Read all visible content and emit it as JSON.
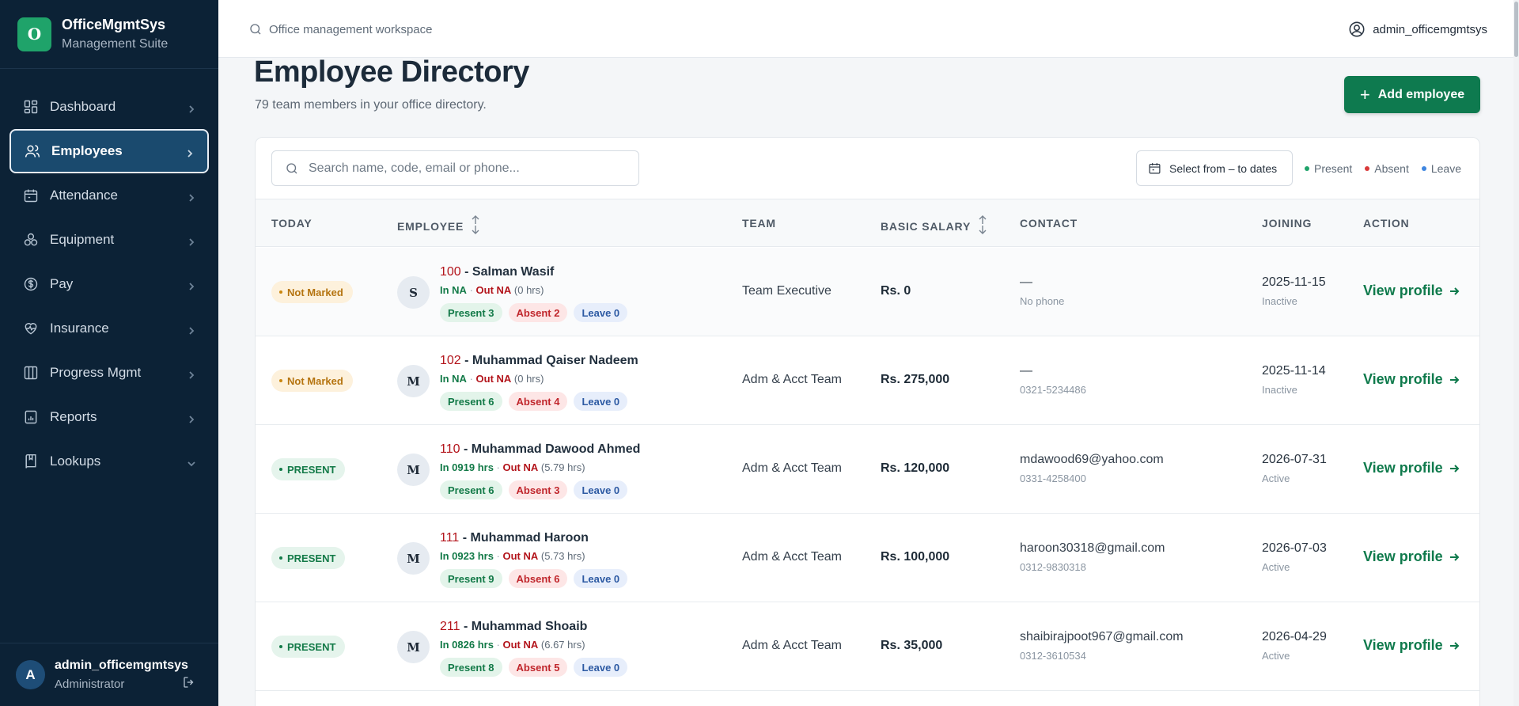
{
  "brand": {
    "logo_letter": "O",
    "name": "OfficeMgmtSys",
    "subtitle": "Management Suite"
  },
  "sidebar": {
    "items": [
      {
        "label": "Dashboard",
        "icon": "dashboard-icon",
        "active": false,
        "chevron": "right"
      },
      {
        "label": "Employees",
        "icon": "users-icon",
        "active": true,
        "chevron": "right"
      },
      {
        "label": "Attendance",
        "icon": "calendar-icon",
        "active": false,
        "chevron": "right"
      },
      {
        "label": "Equipment",
        "icon": "equipment-icon",
        "active": false,
        "chevron": "right"
      },
      {
        "label": "Pay",
        "icon": "dollar-icon",
        "active": false,
        "chevron": "right"
      },
      {
        "label": "Insurance",
        "icon": "heart-pulse-icon",
        "active": false,
        "chevron": "right"
      },
      {
        "label": "Progress Mgmt",
        "icon": "columns-icon",
        "active": false,
        "chevron": "right"
      },
      {
        "label": "Reports",
        "icon": "report-icon",
        "active": false,
        "chevron": "right"
      },
      {
        "label": "Lookups",
        "icon": "book-icon",
        "active": false,
        "chevron": "down"
      }
    ],
    "user": {
      "avatar_letter": "A",
      "name": "admin_officemgmtsys",
      "role": "Administrator"
    }
  },
  "topbar": {
    "search_text": "Office management workspace",
    "user_name": "admin_officemgmtsys"
  },
  "page": {
    "title": "Employee Directory",
    "subtitle": "79 team members in your office directory.",
    "add_button": "Add employee"
  },
  "filters": {
    "search_placeholder": "Search name, code, email or phone...",
    "date_button": "Select from – to dates",
    "legend": [
      {
        "label": "Present",
        "color": "#1fa36a"
      },
      {
        "label": "Absent",
        "color": "#d93a3a"
      },
      {
        "label": "Leave",
        "color": "#3f86e0"
      }
    ]
  },
  "table": {
    "headers": [
      "TODAY",
      "EMPLOYEE",
      "TEAM",
      "BASIC SALARY",
      "CONTACT",
      "JOINING",
      "ACTION"
    ],
    "rows": [
      {
        "status": "Not Marked",
        "status_type": "not-marked",
        "initial": "S",
        "code": "100",
        "name": " - Salman Wasif",
        "in": "In NA",
        "out": "Out NA",
        "hrs": " (0 hrs)",
        "present": "Present 3",
        "absent": "Absent 2",
        "leave": "Leave 0",
        "team": "Team Executive",
        "salary": "Rs. 0",
        "email": "—",
        "phone": "No phone",
        "joining": "2025-11-15",
        "state": "Inactive",
        "action": "View profile"
      },
      {
        "status": "Not Marked",
        "status_type": "not-marked",
        "initial": "M",
        "code": "102",
        "name": " - Muhammad Qaiser Nadeem",
        "in": "In NA",
        "out": "Out NA",
        "hrs": " (0 hrs)",
        "present": "Present 6",
        "absent": "Absent 4",
        "leave": "Leave 0",
        "team": "Adm & Acct Team",
        "salary": "Rs. 275,000",
        "email": "—",
        "phone": "0321-5234486",
        "joining": "2025-11-14",
        "state": "Inactive",
        "action": "View profile"
      },
      {
        "status": "PRESENT",
        "status_type": "present",
        "initial": "M",
        "code": "110",
        "name": " - Muhammad Dawood Ahmed",
        "in": "In 0919 hrs",
        "out": "Out NA",
        "hrs": " (5.79 hrs)",
        "present": "Present 6",
        "absent": "Absent 3",
        "leave": "Leave 0",
        "team": "Adm & Acct Team",
        "salary": "Rs. 120,000",
        "email": "mdawood69@yahoo.com",
        "phone": "0331-4258400",
        "joining": "2026-07-31",
        "state": "Active",
        "action": "View profile"
      },
      {
        "status": "PRESENT",
        "status_type": "present",
        "initial": "M",
        "code": "111",
        "name": " - Muhammad Haroon",
        "in": "In 0923 hrs",
        "out": "Out NA",
        "hrs": " (5.73 hrs)",
        "present": "Present 9",
        "absent": "Absent 6",
        "leave": "Leave 0",
        "team": "Adm & Acct Team",
        "salary": "Rs. 100,000",
        "email": "haroon30318@gmail.com",
        "phone": "0312-9830318",
        "joining": "2026-07-03",
        "state": "Active",
        "action": "View profile"
      },
      {
        "status": "PRESENT",
        "status_type": "present",
        "initial": "M",
        "code": "211",
        "name": " - Muhammad Shoaib",
        "in": "In 0826 hrs",
        "out": "Out NA",
        "hrs": " (6.67 hrs)",
        "present": "Present 8",
        "absent": "Absent 5",
        "leave": "Leave 0",
        "team": "Adm & Acct Team",
        "salary": "Rs. 35,000",
        "email": "shaibirajpoot967@gmail.com",
        "phone": "0312-3610534",
        "joining": "2026-04-29",
        "state": "Active",
        "action": "View profile"
      }
    ]
  }
}
